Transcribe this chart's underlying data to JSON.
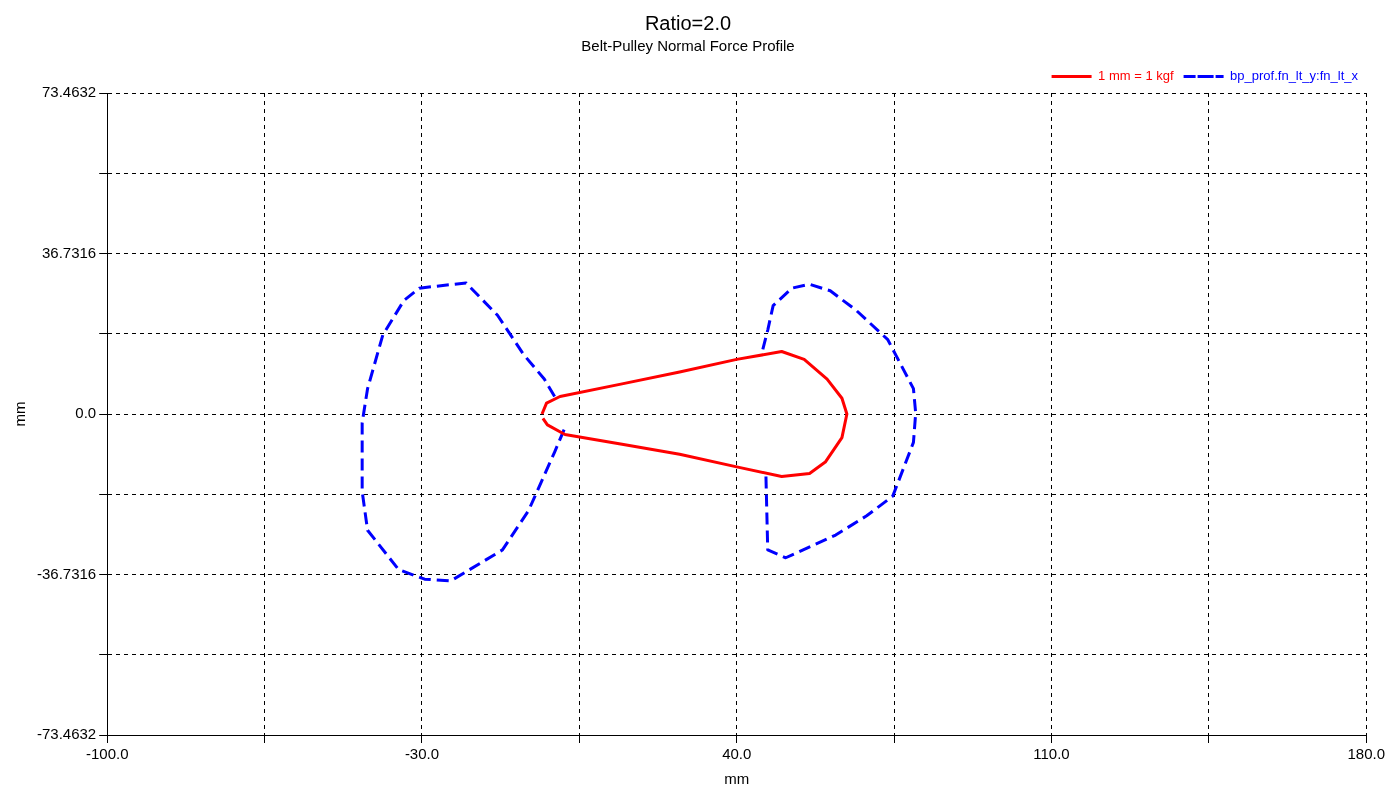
{
  "chart_data": {
    "type": "line",
    "title": "Ratio=2.0",
    "subtitle": "Belt-Pulley Normal Force Profile",
    "xlabel": "mm",
    "ylabel": "mm",
    "xlim": [
      -100,
      180
    ],
    "xticks": [
      {
        "value": -100,
        "label": "-100.0"
      },
      {
        "value": -65,
        "label": null
      },
      {
        "value": -30,
        "label": "-30.0"
      },
      {
        "value": 5,
        "label": null
      },
      {
        "value": 40,
        "label": "40.0"
      },
      {
        "value": 75,
        "label": null
      },
      {
        "value": 110,
        "label": "110.0"
      },
      {
        "value": 145,
        "label": null
      },
      {
        "value": 180,
        "label": "180.0"
      }
    ],
    "ylim": [
      -73.4632,
      73.4632
    ],
    "yticks": [
      -73.4632,
      {
        "value": -55.0974,
        "label": null
      },
      -36.7316,
      {
        "value": -18.3658,
        "label": null
      },
      {
        "value": 0,
        "label": "0.0"
      },
      {
        "value": 18.3658,
        "label": null
      },
      36.7316,
      {
        "value": 55.0974,
        "label": null
      },
      73.4632
    ],
    "grid": true,
    "legend": "top right",
    "marker": "none",
    "series": [
      {
        "name": "1 mm = 1 kgf",
        "color": "#ff0000",
        "line_style": "solid",
        "x": [
          -3.3,
          -2.3,
          0.7,
          14.5,
          27.3,
          40,
          50,
          55,
          60.1,
          63.4,
          64.5,
          63.4,
          59.7,
          56.2,
          50,
          40,
          27.3,
          14.5,
          1.8,
          -2.1,
          -3.1
        ],
        "values": [
          0,
          2.5,
          4,
          6.9,
          9.6,
          12.5,
          14.3,
          12.5,
          8,
          3.6,
          0,
          -5.4,
          -11,
          -13.6,
          -14.3,
          -12.1,
          -9.2,
          -6.9,
          -4.7,
          -2.5,
          -1
        ]
      },
      {
        "name": "bp_prof.fn_lt_y:fn_lt_x",
        "color": "#0000ff",
        "line_style": "dashed",
        "x": [
          -0.5,
          -2.8,
          -7.4,
          -13.2,
          -20.2,
          -30.6,
          -34,
          -38.7,
          -42.1,
          -43.3,
          -43.3,
          -42.1,
          -35.2,
          -29.4,
          -23.6,
          -12.1,
          -6.3,
          -0.5,
          1.8,
          20,
          46.5,
          46.9,
          50.9,
          62,
          68.9,
          74.7,
          79.3,
          79.8,
          79.3,
          73.6,
          66.6,
          60.8,
          56.2,
          52.3,
          48.1,
          46.9,
          45.8
        ],
        "values": [
          4,
          8,
          13.6,
          22.6,
          30,
          28.8,
          26,
          18.1,
          5.8,
          -2,
          -17.7,
          -26.6,
          -35.6,
          -37.8,
          -38.2,
          -31.1,
          -22.1,
          -8.7,
          -3.1,
          null,
          -14.3,
          -31.1,
          -32.9,
          -27.7,
          -23.3,
          -18.8,
          -6.5,
          0.2,
          5.8,
          17,
          23.7,
          28.2,
          29.7,
          28.8,
          24.8,
          19.2,
          14.8
        ]
      }
    ]
  }
}
